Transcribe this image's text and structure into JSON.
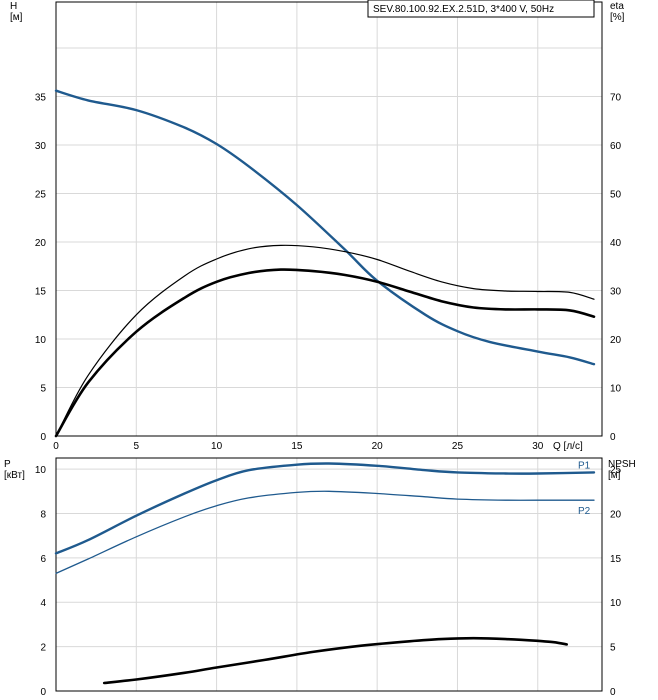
{
  "chart_data": [
    {
      "type": "line",
      "title": "SEV.80.100.92.EX.2.51D, 3*400 V, 50Hz",
      "xlabel": "Q [л/с]",
      "ylabel": "H\n[м]",
      "y2label": "eta\n[%]",
      "xlim": [
        0,
        34
      ],
      "ylim": [
        0,
        40
      ],
      "y2lim": [
        0,
        80
      ],
      "x_ticks": [
        0,
        5,
        10,
        15,
        20,
        25,
        30
      ],
      "y_ticks": [
        0,
        5,
        10,
        15,
        20,
        25,
        30,
        35
      ],
      "y2_ticks": [
        0,
        10,
        20,
        30,
        40,
        50,
        60,
        70
      ],
      "grid": true,
      "series": [
        {
          "axis": "left",
          "color": "#1f5a8e",
          "width": 2.4,
          "points": [
            [
              0,
              35.6
            ],
            [
              2,
              34.6
            ],
            [
              5,
              33.6
            ],
            [
              8,
              31.8
            ],
            [
              10,
              30.1
            ],
            [
              12,
              27.8
            ],
            [
              15,
              23.8
            ],
            [
              18,
              19.2
            ],
            [
              20,
              16.0
            ],
            [
              23,
              12.5
            ],
            [
              25,
              10.8
            ],
            [
              27,
              9.7
            ],
            [
              30,
              8.7
            ],
            [
              32,
              8.1
            ],
            [
              33.5,
              7.4
            ]
          ]
        },
        {
          "axis": "right",
          "color": "#000000",
          "width": 1.2,
          "points": [
            [
              0,
              0
            ],
            [
              2,
              12.5
            ],
            [
              5,
              25
            ],
            [
              8,
              33
            ],
            [
              10,
              36.5
            ],
            [
              12,
              38.6
            ],
            [
              14,
              39.3
            ],
            [
              16,
              39
            ],
            [
              18,
              38
            ],
            [
              20,
              36.4
            ],
            [
              22,
              34
            ],
            [
              24,
              31.8
            ],
            [
              26,
              30.4
            ],
            [
              28,
              29.9
            ],
            [
              30,
              29.8
            ],
            [
              32,
              29.6
            ],
            [
              33.5,
              28.2
            ]
          ]
        },
        {
          "axis": "right",
          "color": "#000000",
          "width": 2.6,
          "points": [
            [
              0,
              0
            ],
            [
              2,
              11
            ],
            [
              5,
              21.5
            ],
            [
              8,
              28.5
            ],
            [
              10,
              31.8
            ],
            [
              12,
              33.6
            ],
            [
              14,
              34.3
            ],
            [
              16,
              34
            ],
            [
              18,
              33.2
            ],
            [
              20,
              31.8
            ],
            [
              22,
              29.8
            ],
            [
              24,
              27.8
            ],
            [
              26,
              26.5
            ],
            [
              28,
              26.1
            ],
            [
              30,
              26.1
            ],
            [
              32,
              25.9
            ],
            [
              33.5,
              24.6
            ]
          ]
        }
      ]
    },
    {
      "type": "line",
      "ylabel": "P\n[кВт]",
      "y2label": "NPSH\n[м]",
      "xlim": [
        0,
        34
      ],
      "ylim": [
        0,
        10.5
      ],
      "y2lim": [
        0,
        26.25
      ],
      "y_ticks": [
        0,
        2,
        4,
        6,
        8,
        10
      ],
      "y2_ticks": [
        0,
        5,
        10,
        15,
        20,
        25
      ],
      "grid": true,
      "series": [
        {
          "name": "P1",
          "axis": "left",
          "color": "#1f5a8e",
          "width": 2.4,
          "points": [
            [
              0,
              6.2
            ],
            [
              2,
              6.8
            ],
            [
              5,
              7.9
            ],
            [
              8,
              8.9
            ],
            [
              10,
              9.5
            ],
            [
              12,
              9.95
            ],
            [
              15,
              10.2
            ],
            [
              17,
              10.25
            ],
            [
              20,
              10.15
            ],
            [
              23,
              9.95
            ],
            [
              25,
              9.85
            ],
            [
              28,
              9.8
            ],
            [
              30,
              9.8
            ],
            [
              33.5,
              9.85
            ]
          ]
        },
        {
          "name": "P2",
          "axis": "left",
          "color": "#1f5a8e",
          "width": 1.3,
          "points": [
            [
              0,
              5.3
            ],
            [
              2,
              5.95
            ],
            [
              5,
              6.95
            ],
            [
              8,
              7.85
            ],
            [
              10,
              8.35
            ],
            [
              12,
              8.7
            ],
            [
              15,
              8.95
            ],
            [
              17,
              9.0
            ],
            [
              20,
              8.9
            ],
            [
              23,
              8.75
            ],
            [
              25,
              8.65
            ],
            [
              28,
              8.6
            ],
            [
              30,
              8.6
            ],
            [
              33.5,
              8.6
            ]
          ]
        },
        {
          "axis": "right",
          "color": "#000000",
          "width": 2.6,
          "points": [
            [
              3,
              0.9
            ],
            [
              5,
              1.3
            ],
            [
              8,
              2.05
            ],
            [
              10,
              2.65
            ],
            [
              13,
              3.5
            ],
            [
              16,
              4.4
            ],
            [
              19,
              5.1
            ],
            [
              22,
              5.6
            ],
            [
              24,
              5.85
            ],
            [
              26,
              5.95
            ],
            [
              28,
              5.85
            ],
            [
              30,
              5.65
            ],
            [
              31,
              5.5
            ],
            [
              31.8,
              5.25
            ]
          ]
        }
      ]
    }
  ]
}
